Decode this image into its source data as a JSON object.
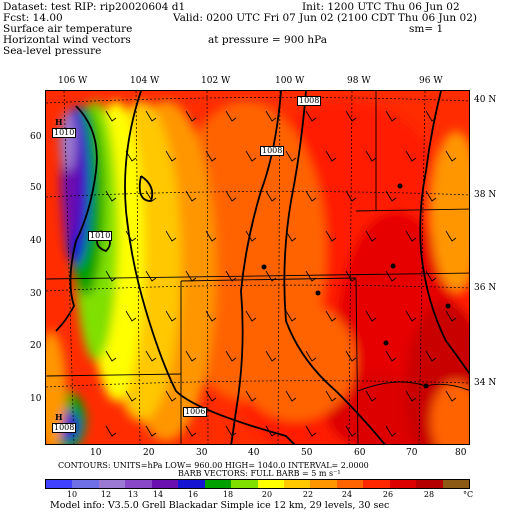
{
  "header": {
    "line1_left": "Dataset: test   RIP: rip20020604  d1",
    "line1_right": "Init: 1200 UTC Thu 06 Jun 02",
    "line2_left": "Fcst:     14.00",
    "line2_right": "Valid: 0200 UTC Fri 07 Jun 02 (2100 CDT Thu 06 Jun 02)",
    "line3_left": "Surface air temperature",
    "line3_right": "sm= 1",
    "line4_left": "Horizontal wind vectors",
    "line4_mid": "at pressure =  900 hPa",
    "line5_left": "Sea-level pressure"
  },
  "axes": {
    "top_longitudes": [
      "106 W",
      "104 W",
      "102 W",
      "100 W",
      "98 W",
      "96 W"
    ],
    "right_latitudes": [
      "40 N",
      "38 N",
      "36 N",
      "34 N"
    ],
    "left_ticks": [
      "60",
      "50",
      "40",
      "30",
      "20",
      "10"
    ],
    "bottom_ticks": [
      "10",
      "20",
      "30",
      "40",
      "50",
      "60",
      "70",
      "80"
    ]
  },
  "pressure_labels": [
    "1008",
    "1008",
    "1010",
    "1010",
    "1008",
    "1006"
  ],
  "high_labels": [
    "H",
    "H"
  ],
  "footer": {
    "contours_line": "CONTOURS:  UNITS=hPa   LOW=  960.00         HIGH=  1040.0        INTERVAL=    2.0000",
    "barb_line": "BARB VECTORS:  FULL BARB = 5 m s⁻¹",
    "colorbar_labels": [
      "10",
      "12",
      "13",
      "14",
      "16",
      "18",
      "20",
      "22",
      "24",
      "26",
      "28",
      "°C"
    ],
    "model_info": "Model info: V3.5.0   Grell       Blackadar   Simple ice      12 km,  29 levels,    30 sec"
  },
  "colorbar_colors": [
    "#4040ff",
    "#6f6fe6",
    "#9a7ad2",
    "#8848c8",
    "#6a0fb0",
    "#1414d2",
    "#00a000",
    "#80e000",
    "#ffff00",
    "#ffc800",
    "#ff9600",
    "#ff6400",
    "#ff2800",
    "#dc0000",
    "#b40000",
    "#8c5a14"
  ],
  "chart_data": {
    "type": "heatmap",
    "variable": "Surface air temperature",
    "units": "°C",
    "overlays": [
      "Horizontal wind vectors (900 hPa)",
      "Sea-level pressure contours (hPa)"
    ],
    "pressure_contour_values_hPa": [
      1006,
      1008,
      1010
    ],
    "color_scale_levels": [
      10,
      12,
      13,
      14,
      16,
      18,
      20,
      22,
      24,
      26,
      28
    ],
    "contour_interval_hPa": 2.0,
    "contour_low_hPa": 960.0,
    "contour_high_hPa": 1040.0,
    "barb_full_value_m_s": 5,
    "grid_x_range": [
      1,
      81
    ],
    "grid_y_range": [
      1,
      68
    ]
  }
}
